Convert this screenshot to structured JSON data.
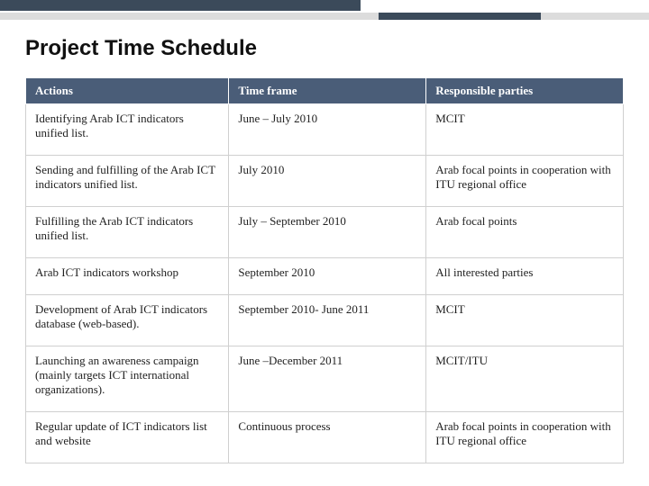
{
  "title": "Project Time Schedule",
  "top_bar": {
    "dark_color": "#3b4a5a",
    "gray_color": "#dcdcdc"
  },
  "table": {
    "header_bg": "#4a5d78",
    "header_fg": "#ffffff",
    "border_color": "#d0d0d0",
    "columns": [
      "Actions",
      "Time frame",
      "Responsible parties"
    ],
    "rows": [
      [
        "Identifying  Arab ICT indicators unified list.",
        "June – July 2010",
        "MCIT"
      ],
      [
        "Sending and fulfilling of the Arab ICT indicators unified list.",
        "July 2010",
        "Arab focal points in cooperation with ITU regional office"
      ],
      [
        "Fulfilling the  Arab ICT indicators unified list.",
        "July – September  2010",
        "Arab focal points"
      ],
      [
        "Arab ICT indicators workshop",
        "September 2010",
        "All interested parties"
      ],
      [
        "Development of Arab ICT indicators database (web-based).",
        "September 2010- June 2011",
        "MCIT"
      ],
      [
        "Launching an awareness campaign (mainly targets ICT international organizations).",
        "June –December 2011",
        "MCIT/ITU"
      ],
      [
        "Regular update of ICT indicators list and website",
        "Continuous process",
        "Arab focal points in cooperation with ITU regional office"
      ]
    ]
  }
}
